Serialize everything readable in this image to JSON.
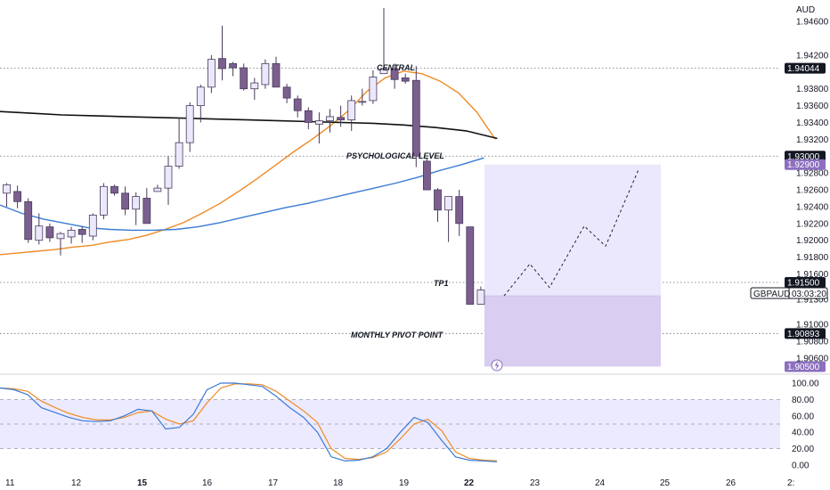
{
  "currency": "AUD",
  "symbol_tag": "GBPAUD",
  "countdown": "03:03:20",
  "colors": {
    "candle_up_fill": "#ece8fb",
    "candle_down_fill": "#7a5f8f",
    "candle_outline": "#4a3a5c",
    "ma_fast": "#f08a24",
    "ma_mid": "#3a7bd5",
    "ma_slow": "#111111",
    "zone_target": "#ebe8fd",
    "zone_stop": "#d9cdf1",
    "stoch_k": "#3a7bd5",
    "stoch_d": "#f08a24",
    "stoch_band": "#eceaff",
    "tag_dark": "#131722",
    "tag_purple": "#8c6fbf"
  },
  "price_axis": {
    "ticks": [
      "1.94600",
      "1.94200",
      "1.93800",
      "1.93600",
      "1.93400",
      "1.93200",
      "1.92800",
      "1.92600",
      "1.92400",
      "1.92200",
      "1.92000",
      "1.91800",
      "1.91600",
      "1.91300",
      "1.91000",
      "1.90800",
      "1.90600"
    ],
    "tags": [
      {
        "value": "1.94044",
        "style": "dark"
      },
      {
        "value": "1.93000",
        "style": "dark"
      },
      {
        "value": "1.92900",
        "style": "purple"
      },
      {
        "value": "1.91500",
        "style": "dark"
      },
      {
        "value": "1.90893",
        "style": "dark"
      },
      {
        "value": "1.90500",
        "style": "purple"
      }
    ]
  },
  "osc_axis": {
    "ticks": [
      "100.00",
      "80.00",
      "60.00",
      "40.00",
      "20.00",
      "0.00"
    ]
  },
  "time_axis": {
    "labels": [
      {
        "text": "11",
        "bold": false
      },
      {
        "text": "12",
        "bold": false
      },
      {
        "text": "15",
        "bold": true
      },
      {
        "text": "16",
        "bold": false
      },
      {
        "text": "17",
        "bold": false
      },
      {
        "text": "18",
        "bold": false
      },
      {
        "text": "19",
        "bold": false
      },
      {
        "text": "22",
        "bold": true
      },
      {
        "text": "23",
        "bold": false
      },
      {
        "text": "24",
        "bold": false
      },
      {
        "text": "25",
        "bold": false
      },
      {
        "text": "26",
        "bold": false
      },
      {
        "text": "2:",
        "bold": false
      }
    ]
  },
  "annotations": {
    "central": "CENTRAL",
    "psychological": "PSYCHOLOGICAL LEVEL",
    "tp1": "TP1",
    "monthly_pivot": "MONTHLY PIVOT POINT"
  },
  "chart_data": {
    "type": "candlestick",
    "symbol": "GBPAUD",
    "price_range": [
      1.9046,
      1.9472
    ],
    "levels": [
      {
        "label": "CENTRAL",
        "price": 1.94044
      },
      {
        "label": "PSYCHOLOGICAL LEVEL",
        "price": 1.93
      },
      {
        "label": "TP1",
        "price": 1.915
      },
      {
        "label": "MONTHLY PIVOT POINT",
        "price": 1.90893
      }
    ],
    "position": {
      "entry": 1.9134,
      "target": 1.929,
      "stop": 1.905
    },
    "candles": [
      {
        "o": 1.9256,
        "h": 1.9268,
        "l": 1.924,
        "c": 1.9266
      },
      {
        "o": 1.9258,
        "h": 1.9265,
        "l": 1.9238,
        "c": 1.9246
      },
      {
        "o": 1.9246,
        "h": 1.925,
        "l": 1.9197,
        "c": 1.9201
      },
      {
        "o": 1.92,
        "h": 1.9232,
        "l": 1.9195,
        "c": 1.9217
      },
      {
        "o": 1.9216,
        "h": 1.922,
        "l": 1.9198,
        "c": 1.9203
      },
      {
        "o": 1.9202,
        "h": 1.921,
        "l": 1.9182,
        "c": 1.9208
      },
      {
        "o": 1.9204,
        "h": 1.9216,
        "l": 1.9196,
        "c": 1.9212
      },
      {
        "o": 1.9213,
        "h": 1.9217,
        "l": 1.9197,
        "c": 1.9207
      },
      {
        "o": 1.9205,
        "h": 1.9232,
        "l": 1.92,
        "c": 1.923
      },
      {
        "o": 1.923,
        "h": 1.9268,
        "l": 1.9225,
        "c": 1.9264
      },
      {
        "o": 1.9264,
        "h": 1.9266,
        "l": 1.9253,
        "c": 1.9256
      },
      {
        "o": 1.9256,
        "h": 1.9264,
        "l": 1.923,
        "c": 1.9237
      },
      {
        "o": 1.9237,
        "h": 1.9257,
        "l": 1.9218,
        "c": 1.9252
      },
      {
        "o": 1.925,
        "h": 1.9262,
        "l": 1.922,
        "c": 1.922
      },
      {
        "o": 1.9258,
        "h": 1.9266,
        "l": 1.9258,
        "c": 1.9262
      },
      {
        "o": 1.9262,
        "h": 1.93,
        "l": 1.9242,
        "c": 1.9288
      },
      {
        "o": 1.9288,
        "h": 1.9346,
        "l": 1.9285,
        "c": 1.9316
      },
      {
        "o": 1.9316,
        "h": 1.9364,
        "l": 1.9305,
        "c": 1.936
      },
      {
        "o": 1.936,
        "h": 1.9385,
        "l": 1.934,
        "c": 1.9382
      },
      {
        "o": 1.9382,
        "h": 1.942,
        "l": 1.9375,
        "c": 1.9415
      },
      {
        "o": 1.9416,
        "h": 1.9455,
        "l": 1.939,
        "c": 1.9404
      },
      {
        "o": 1.941,
        "h": 1.9412,
        "l": 1.9395,
        "c": 1.9405
      },
      {
        "o": 1.9405,
        "h": 1.941,
        "l": 1.9378,
        "c": 1.938
      },
      {
        "o": 1.938,
        "h": 1.9393,
        "l": 1.9367,
        "c": 1.9387
      },
      {
        "o": 1.9385,
        "h": 1.9415,
        "l": 1.938,
        "c": 1.941
      },
      {
        "o": 1.941,
        "h": 1.9418,
        "l": 1.9382,
        "c": 1.9382
      },
      {
        "o": 1.9382,
        "h": 1.9386,
        "l": 1.9363,
        "c": 1.9369
      },
      {
        "o": 1.9368,
        "h": 1.9372,
        "l": 1.9346,
        "c": 1.9354
      },
      {
        "o": 1.9354,
        "h": 1.9358,
        "l": 1.9332,
        "c": 1.934
      },
      {
        "o": 1.9338,
        "h": 1.9352,
        "l": 1.9315,
        "c": 1.9342
      },
      {
        "o": 1.9342,
        "h": 1.9356,
        "l": 1.9328,
        "c": 1.9347
      },
      {
        "o": 1.9346,
        "h": 1.936,
        "l": 1.9335,
        "c": 1.9343
      },
      {
        "o": 1.9343,
        "h": 1.9372,
        "l": 1.933,
        "c": 1.9366
      },
      {
        "o": 1.9365,
        "h": 1.938,
        "l": 1.936,
        "c": 1.9365
      },
      {
        "o": 1.9366,
        "h": 1.9402,
        "l": 1.9362,
        "c": 1.9394
      },
      {
        "o": 1.9398,
        "h": 1.9476,
        "l": 1.9398,
        "c": 1.9404
      },
      {
        "o": 1.9404,
        "h": 1.941,
        "l": 1.938,
        "c": 1.9391
      },
      {
        "o": 1.9393,
        "h": 1.9398,
        "l": 1.9386,
        "c": 1.9389
      },
      {
        "o": 1.939,
        "h": 1.9407,
        "l": 1.9287,
        "c": 1.93
      },
      {
        "o": 1.9294,
        "h": 1.9298,
        "l": 1.926,
        "c": 1.926
      },
      {
        "o": 1.926,
        "h": 1.9262,
        "l": 1.9222,
        "c": 1.9236
      },
      {
        "o": 1.9236,
        "h": 1.9252,
        "l": 1.9198,
        "c": 1.9252
      },
      {
        "o": 1.9252,
        "h": 1.926,
        "l": 1.9205,
        "c": 1.922
      },
      {
        "o": 1.9216,
        "h": 1.9216,
        "l": 1.9124,
        "c": 1.9124
      },
      {
        "o": 1.9124,
        "h": 1.9145,
        "l": 1.9124,
        "c": 1.9141
      }
    ],
    "moving_averages": [
      {
        "color": "orange",
        "values": [
          1.9183,
          1.9185,
          1.9187,
          1.9189,
          1.9192,
          1.9194,
          1.9198,
          1.9201,
          1.9206,
          1.9213,
          1.9221,
          1.9232,
          1.9244,
          1.9258,
          1.9273,
          1.9289,
          1.9305,
          1.932,
          1.9336,
          1.9354,
          1.9377,
          1.9393,
          1.9401,
          1.9398,
          1.9389,
          1.9375,
          1.9352,
          1.932
        ]
      },
      {
        "color": "blue",
        "values": [
          1.9242,
          1.9232,
          1.9225,
          1.922,
          1.9215,
          1.9213,
          1.9212,
          1.9212,
          1.9213,
          1.9216,
          1.9221,
          1.9227,
          1.9233,
          1.9239,
          1.9244,
          1.925,
          1.9256,
          1.9262,
          1.9268,
          1.9275,
          1.9283,
          1.929,
          1.9298
        ]
      },
      {
        "color": "black",
        "values": [
          1.9353,
          1.9351,
          1.9349,
          1.9348,
          1.9347,
          1.9346,
          1.9345,
          1.9344,
          1.9343,
          1.9342,
          1.9341,
          1.934,
          1.9339,
          1.9337,
          1.9334,
          1.933,
          1.9321
        ]
      }
    ],
    "projection": [
      1.9134,
      1.9172,
      1.9144,
      1.9217,
      1.9193,
      1.9284
    ],
    "stochastic": {
      "k": [
        94,
        92,
        86,
        70,
        64,
        58,
        54,
        53,
        54,
        60,
        68,
        66,
        44,
        46,
        62,
        92,
        100,
        100,
        98,
        96,
        84,
        70,
        58,
        40,
        10,
        5,
        6,
        10,
        20,
        40,
        58,
        52,
        30,
        10,
        6,
        5,
        4
      ],
      "d": [
        94,
        93,
        90,
        78,
        70,
        63,
        58,
        55,
        55,
        58,
        64,
        66,
        56,
        50,
        54,
        76,
        94,
        99,
        99,
        98,
        90,
        78,
        66,
        52,
        20,
        8,
        7,
        9,
        16,
        32,
        50,
        56,
        42,
        16,
        8,
        6,
        5
      ],
      "ylim": [
        0,
        100
      ],
      "bands": [
        20,
        50,
        80
      ]
    }
  }
}
